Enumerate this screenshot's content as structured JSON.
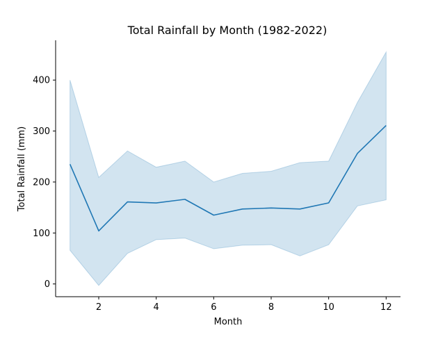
{
  "chart_data": {
    "type": "line",
    "title": "Total Rainfall by Month (1982-2022)",
    "xlabel": "Month",
    "ylabel": "Total Rainfall (mm)",
    "xlim": [
      0.5,
      12.5
    ],
    "ylim": [
      -25,
      478
    ],
    "xticks": [
      2,
      4,
      6,
      8,
      10,
      12
    ],
    "yticks": [
      0,
      100,
      200,
      300,
      400
    ],
    "grid": false,
    "x": [
      1,
      2,
      3,
      4,
      5,
      6,
      7,
      8,
      9,
      10,
      11,
      12
    ],
    "series": [
      {
        "values": [
          235,
          104,
          161,
          159,
          166,
          135,
          147,
          149,
          147,
          159,
          256,
          311
        ],
        "band_lower": [
          66,
          -3,
          60,
          87,
          90,
          69,
          76,
          77,
          55,
          77,
          153,
          165
        ],
        "band_upper": [
          400,
          209,
          261,
          229,
          241,
          200,
          217,
          221,
          238,
          241,
          356,
          455
        ],
        "color": "#1f77b4",
        "band_color": "#1f77b4"
      }
    ]
  }
}
